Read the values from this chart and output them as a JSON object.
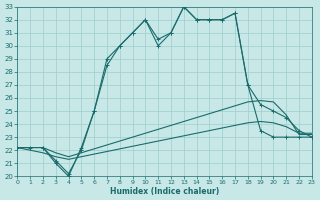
{
  "xlabel": "Humidex (Indice chaleur)",
  "xlim": [
    0,
    23
  ],
  "ylim": [
    20,
    33
  ],
  "xticks": [
    0,
    1,
    2,
    3,
    4,
    5,
    6,
    7,
    8,
    9,
    10,
    11,
    12,
    13,
    14,
    15,
    16,
    17,
    18,
    19,
    20,
    21,
    22,
    23
  ],
  "yticks": [
    20,
    21,
    22,
    23,
    24,
    25,
    26,
    27,
    28,
    29,
    30,
    31,
    32,
    33
  ],
  "background_color": "#c8e8e8",
  "grid_color": "#9ecece",
  "line_color": "#1a6b6b",
  "line1_x": [
    0,
    1,
    2,
    3,
    4,
    5,
    6,
    7,
    8,
    9,
    10,
    11,
    12,
    13,
    14,
    15,
    16,
    17,
    18,
    19,
    20,
    21,
    22,
    23
  ],
  "line1_y": [
    22.2,
    22.2,
    22.2,
    21.0,
    20.0,
    22.2,
    25.0,
    29.0,
    30.0,
    31.0,
    32.0,
    30.0,
    31.0,
    33.0,
    32.0,
    32.0,
    32.0,
    32.5,
    27.0,
    23.5,
    23.0,
    23.0,
    23.0,
    23.0
  ],
  "line2_x": [
    2,
    3,
    4,
    5,
    6,
    7,
    8,
    9,
    10,
    11,
    12,
    13,
    14,
    15,
    16,
    17,
    18,
    19,
    20,
    21,
    22,
    23
  ],
  "line2_y": [
    22.2,
    21.2,
    20.2,
    22.0,
    25.0,
    28.5,
    30.0,
    31.0,
    32.0,
    30.5,
    31.0,
    33.0,
    32.0,
    32.0,
    32.0,
    32.5,
    27.0,
    25.5,
    25.0,
    24.5,
    23.5,
    23.0
  ],
  "line3_x": [
    0,
    1,
    2,
    3,
    4,
    5,
    6,
    7,
    8,
    9,
    10,
    11,
    12,
    13,
    14,
    15,
    16,
    17,
    18,
    19,
    20,
    21,
    22,
    23
  ],
  "line3_y": [
    22.2,
    22.2,
    22.2,
    21.8,
    21.5,
    21.8,
    22.1,
    22.4,
    22.7,
    23.0,
    23.3,
    23.6,
    23.9,
    24.2,
    24.5,
    24.8,
    25.1,
    25.4,
    25.7,
    25.8,
    25.7,
    24.7,
    23.2,
    23.2
  ],
  "line4_x": [
    0,
    1,
    2,
    3,
    4,
    5,
    6,
    7,
    8,
    9,
    10,
    11,
    12,
    13,
    14,
    15,
    16,
    17,
    18,
    19,
    20,
    21,
    22,
    23
  ],
  "line4_y": [
    22.2,
    22.0,
    21.8,
    21.5,
    21.3,
    21.5,
    21.7,
    21.9,
    22.1,
    22.3,
    22.5,
    22.7,
    22.9,
    23.1,
    23.3,
    23.5,
    23.7,
    23.9,
    24.1,
    24.2,
    24.1,
    23.8,
    23.3,
    23.3
  ]
}
